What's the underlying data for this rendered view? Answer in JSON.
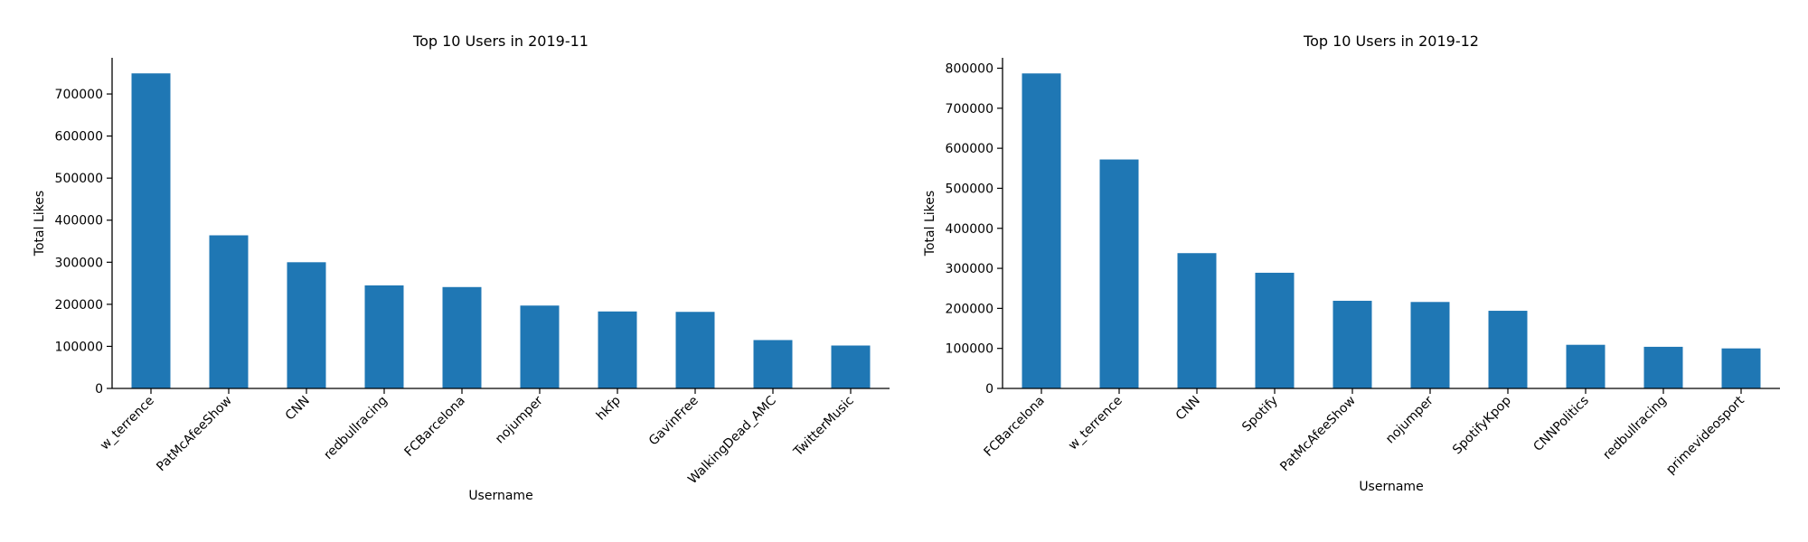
{
  "colors": {
    "bar": "#1f77b4",
    "axis": "#000000",
    "background": "#ffffff"
  },
  "chart_data": [
    {
      "type": "bar",
      "title": "Top 10 Users in 2019-11",
      "xlabel": "Username",
      "ylabel": "Total Likes",
      "categories": [
        "w_terrence",
        "PatMcAfeeShow",
        "CNN",
        "redbullracing",
        "FCBarcelona",
        "nojumper",
        "hkfp",
        "GavinFree",
        "WalkingDead_AMC",
        "TwitterMusic"
      ],
      "values": [
        749000,
        364000,
        300000,
        245000,
        241000,
        197000,
        183000,
        182000,
        115000,
        102000
      ],
      "ylim": [
        0,
        786000
      ],
      "yticks": [
        0,
        100000,
        200000,
        300000,
        400000,
        500000,
        600000,
        700000
      ],
      "ytick_labels": [
        "0",
        "100000",
        "200000",
        "300000",
        "400000",
        "500000",
        "600000",
        "700000"
      ],
      "grid": false,
      "legend": "none"
    },
    {
      "type": "bar",
      "title": "Top 10 Users in 2019-12",
      "xlabel": "Username",
      "ylabel": "Total Likes",
      "categories": [
        "FCBarcelona",
        "w_terrence",
        "CNN",
        "Spotify",
        "PatMcAfeeShow",
        "nojumper",
        "SpotifyKpop",
        "CNNPolitics",
        "redbullracing",
        "primevideosport"
      ],
      "values": [
        787000,
        572000,
        338000,
        289000,
        219000,
        216000,
        194000,
        109000,
        104000,
        100000
      ],
      "ylim": [
        0,
        826000
      ],
      "yticks": [
        0,
        100000,
        200000,
        300000,
        400000,
        500000,
        600000,
        700000,
        800000
      ],
      "ytick_labels": [
        "0",
        "100000",
        "200000",
        "300000",
        "400000",
        "500000",
        "600000",
        "700000",
        "800000"
      ],
      "grid": false,
      "legend": "none"
    }
  ]
}
